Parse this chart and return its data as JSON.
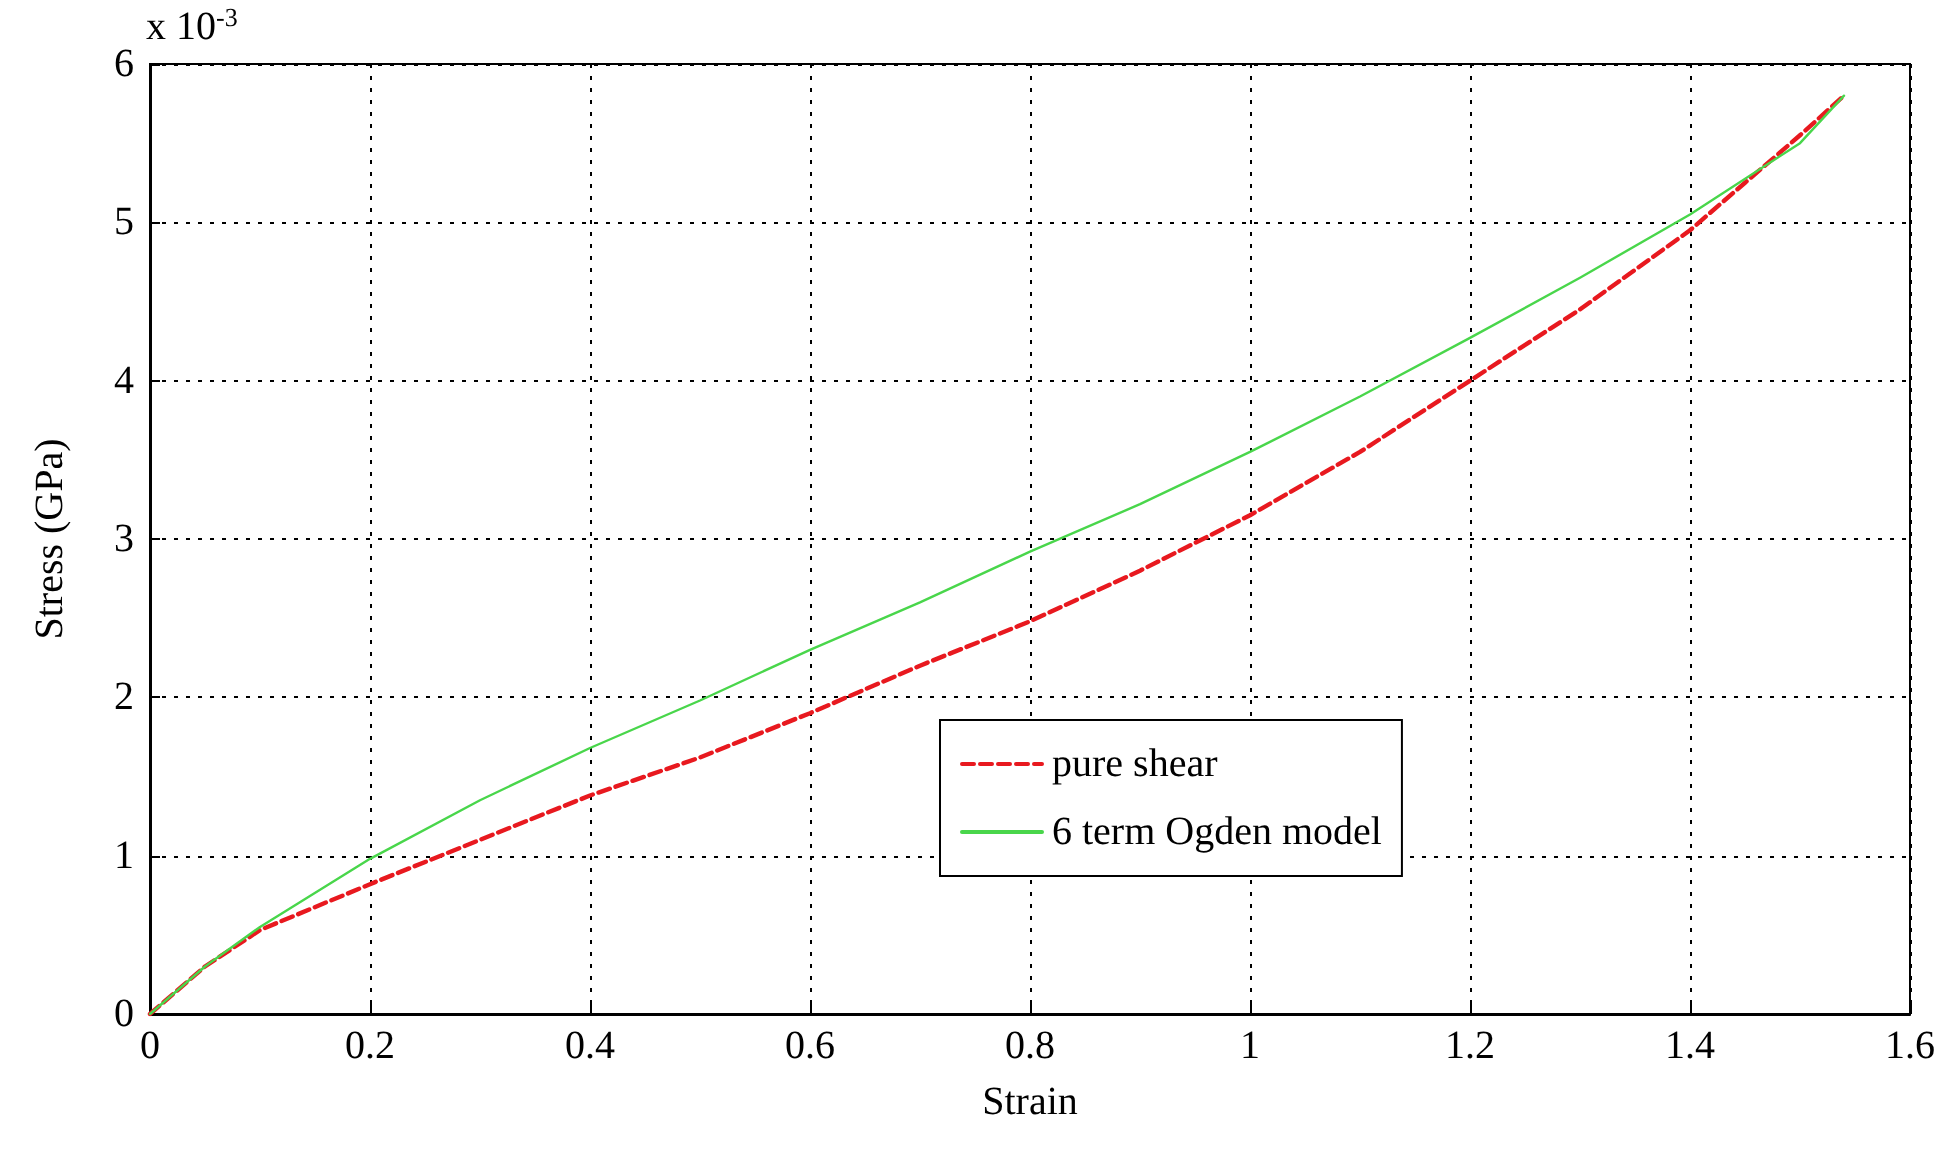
{
  "chart_data": {
    "type": "line",
    "xlabel": "Strain",
    "ylabel": "Stress (GPa)",
    "annotations": [
      "x 10$^{-3}$"
    ],
    "xlim": [
      0,
      1.6
    ],
    "xticks": [
      0,
      0.2,
      0.4,
      0.6,
      0.8,
      1,
      1.2,
      1.4,
      1.6
    ],
    "ylim": [
      0,
      6
    ],
    "yticks": [
      0,
      1,
      2,
      3,
      4,
      5,
      6
    ],
    "grid": true,
    "legend": "bottom right",
    "marker": "none",
    "series": [
      {
        "name": "pure shear",
        "color": "#e8191f",
        "line_style": "dashed",
        "x": [
          0,
          0.05,
          0.1,
          0.2,
          0.3,
          0.4,
          0.5,
          0.6,
          0.7,
          0.8,
          0.9,
          1.0,
          1.1,
          1.2,
          1.3,
          1.4,
          1.45,
          1.5,
          1.54
        ],
        "values": [
          0,
          0.3,
          0.53,
          0.82,
          1.1,
          1.38,
          1.62,
          1.9,
          2.2,
          2.48,
          2.8,
          3.15,
          3.55,
          4.0,
          4.45,
          4.95,
          5.25,
          5.55,
          5.8
        ]
      },
      {
        "name": "6 term Ogden model",
        "color": "#49d64b",
        "line_style": "solid",
        "x": [
          0,
          0.05,
          0.1,
          0.2,
          0.3,
          0.4,
          0.5,
          0.6,
          0.7,
          0.8,
          0.9,
          1.0,
          1.1,
          1.2,
          1.3,
          1.4,
          1.5,
          1.54
        ],
        "values": [
          0,
          0.3,
          0.55,
          0.98,
          1.35,
          1.68,
          1.98,
          2.3,
          2.6,
          2.92,
          3.22,
          3.55,
          3.9,
          4.27,
          4.65,
          5.05,
          5.5,
          5.8
        ]
      }
    ]
  }
}
